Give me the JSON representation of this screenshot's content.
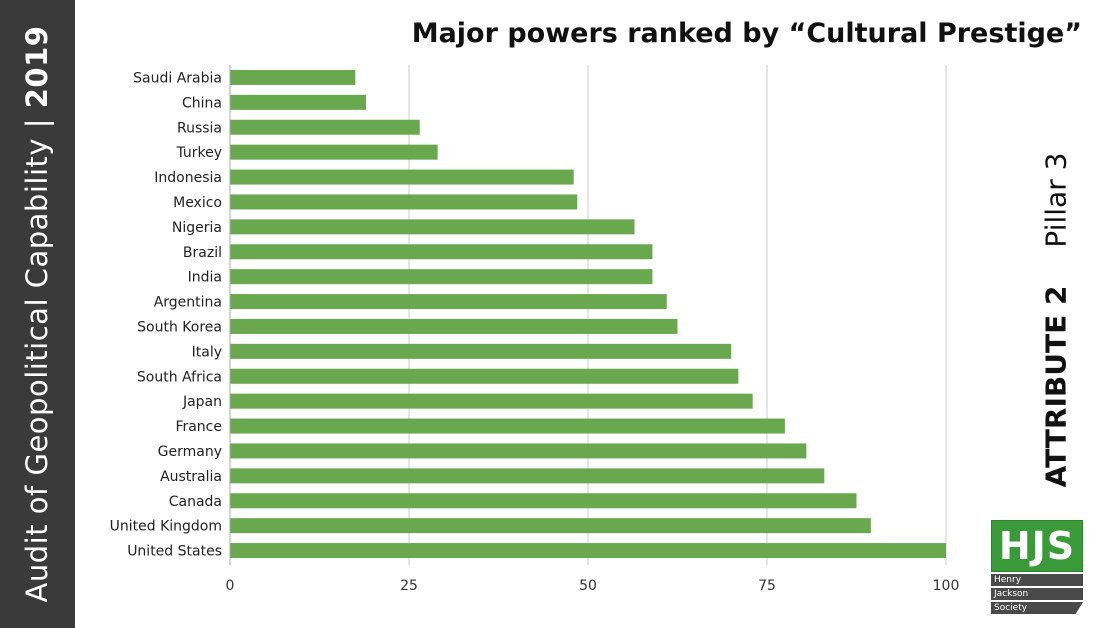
{
  "side_banner": {
    "text": "Audit of Geopolitical Capability | ",
    "year": "2019"
  },
  "title": "Major powers ranked by “Cultural Prestige”",
  "attribute": {
    "label": "ATTRIBUTE 2",
    "pillar": "Pillar 3"
  },
  "logo": {
    "initials": "HJS",
    "lines": [
      "Henry",
      "Jackson",
      "Society"
    ]
  },
  "colors": {
    "bar": "#6aa84f",
    "side_band": "#3a3a3a",
    "logo": "#3a9a3a"
  },
  "chart_data": {
    "type": "bar",
    "orientation": "horizontal",
    "categories": [
      "Saudi Arabia",
      "China",
      "Russia",
      "Turkey",
      "Indonesia",
      "Mexico",
      "Nigeria",
      "Brazil",
      "India",
      "Argentina",
      "South Korea",
      "Italy",
      "South Africa",
      "Japan",
      "France",
      "Germany",
      "Australia",
      "Canada",
      "United Kingdom",
      "United States"
    ],
    "values": [
      17.5,
      19,
      26.5,
      29,
      48,
      48.5,
      56.5,
      59,
      59,
      61,
      62.5,
      70,
      71,
      73,
      77.5,
      80.5,
      83,
      87.5,
      89.5,
      100
    ],
    "xlim": [
      0,
      100
    ],
    "xticks": [
      0,
      25,
      50,
      75,
      100
    ],
    "grid": "vertical",
    "xlabel": "",
    "ylabel": ""
  }
}
